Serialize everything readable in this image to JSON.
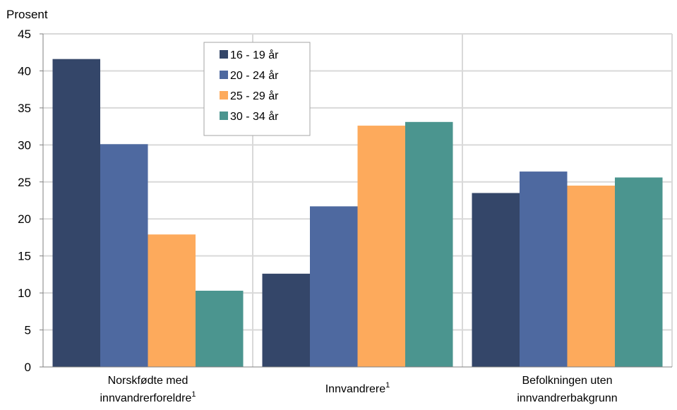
{
  "chart_data": {
    "type": "bar",
    "ylabel": "Prosent",
    "ylim": [
      0,
      45
    ],
    "yticks": [
      0,
      5,
      10,
      15,
      20,
      25,
      30,
      35,
      40,
      45
    ],
    "grid": true,
    "legend_position": "top-left (inside plot)",
    "categories": [
      {
        "label_lines": [
          "Norskfødte med",
          "innvandrerforeldre"
        ],
        "footnote": "1"
      },
      {
        "label_lines": [
          "Innvandrere"
        ],
        "footnote": "1"
      },
      {
        "label_lines": [
          "Befolkningen uten",
          "innvandrerbakgrunn"
        ],
        "footnote": ""
      }
    ],
    "series": [
      {
        "name": "16 - 19 år",
        "color": "#344669",
        "values": [
          41.6,
          12.6,
          23.5
        ]
      },
      {
        "name": "20 - 24 år",
        "color": "#4E69A0",
        "values": [
          30.1,
          21.7,
          26.4
        ]
      },
      {
        "name": "25 - 29 år",
        "color": "#FDAA5C",
        "values": [
          17.9,
          32.6,
          24.5
        ]
      },
      {
        "name": "30 - 34 år",
        "color": "#4B958F",
        "values": [
          10.3,
          33.1,
          25.6
        ]
      }
    ],
    "colors": {
      "grid": "#d9d9d9",
      "axis": "#808080"
    }
  }
}
